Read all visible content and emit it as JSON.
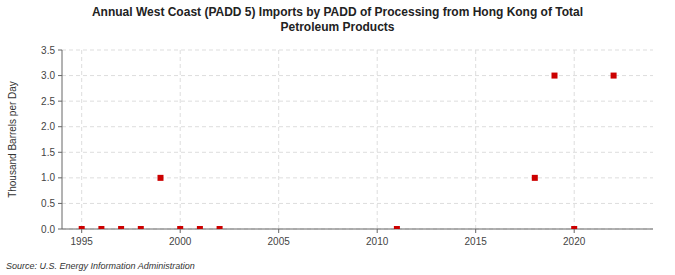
{
  "chart_data": {
    "type": "scatter",
    "title": "Annual West Coast (PADD 5) Imports by PADD of Processing from Hong Kong of Total\nPetroleum Products",
    "ylabel": "Thousand Barrels per Day",
    "source": "Source: U.S. Energy Information Administration",
    "x": [
      1995,
      1996,
      1997,
      1998,
      1999,
      2000,
      2001,
      2002,
      2011,
      2018,
      2019,
      2020,
      2022
    ],
    "values": [
      0.0,
      0.0,
      0.0,
      0.0,
      1.0,
      0.0,
      0.0,
      0.0,
      0.0,
      1.0,
      3.0,
      0.0,
      3.0
    ],
    "color": "#cc0000",
    "marker": "square",
    "xlim": [
      1994,
      2024
    ],
    "ylim": [
      0.0,
      3.5
    ],
    "xticks": [
      1995,
      2000,
      2005,
      2010,
      2015,
      2020
    ],
    "yticks": [
      {
        "value": 0,
        "label": "0.0"
      },
      0.5,
      {
        "value": 1,
        "label": "1.0"
      },
      1.5,
      {
        "value": 2,
        "label": "2.0"
      },
      2.5,
      {
        "value": 3,
        "label": "3.0"
      },
      3.5
    ],
    "grid": true
  }
}
